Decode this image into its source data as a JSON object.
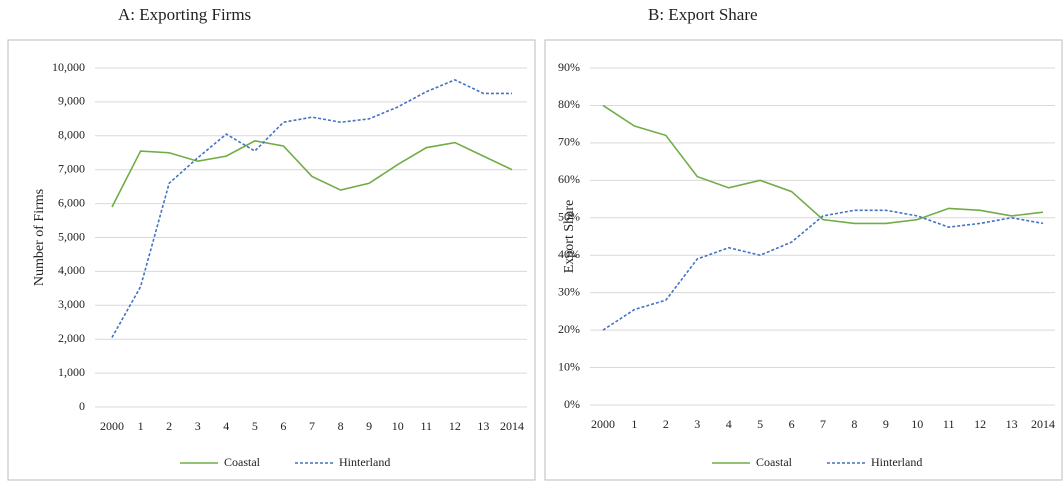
{
  "chart_data": [
    {
      "type": "line",
      "title": "A: Exporting Firms",
      "y_label": "Number of Firms",
      "categories": [
        "2000",
        "1",
        "2",
        "3",
        "4",
        "5",
        "6",
        "7",
        "8",
        "9",
        "10",
        "11",
        "12",
        "13",
        "2014"
      ],
      "series": [
        {
          "name": "Coastal",
          "color": "#70ad47",
          "dash": false,
          "values": [
            5900,
            7550,
            7500,
            7250,
            7400,
            7850,
            7700,
            6800,
            6400,
            6600,
            7150,
            7650,
            7800,
            7400,
            7000
          ]
        },
        {
          "name": "Hinterland",
          "color": "#4472c4",
          "dash": true,
          "values": [
            2050,
            3550,
            6600,
            7350,
            8050,
            7550,
            8400,
            8550,
            8400,
            8500,
            8850,
            9300,
            9650,
            9250,
            9250
          ]
        }
      ],
      "ylim": [
        0,
        10000
      ],
      "yticks": [
        0,
        {
          "value": 1000,
          "label": "1,000"
        },
        {
          "value": 2000,
          "label": "2,000"
        },
        {
          "value": 3000,
          "label": "3,000"
        },
        {
          "value": 4000,
          "label": "4,000"
        },
        {
          "value": 5000,
          "label": "5,000"
        },
        {
          "value": 6000,
          "label": "6,000"
        },
        {
          "value": 7000,
          "label": "7,000"
        },
        {
          "value": 8000,
          "label": "8,000"
        },
        {
          "value": 9000,
          "label": "9,000"
        },
        {
          "value": 10000,
          "label": "10,000"
        }
      ],
      "grid": true,
      "legend": "bottom"
    },
    {
      "type": "line",
      "title": "B: Export Share",
      "y_label": "Export Share",
      "categories": [
        "2000",
        "1",
        "2",
        "3",
        "4",
        "5",
        "6",
        "7",
        "8",
        "9",
        "10",
        "11",
        "12",
        "13",
        "2014"
      ],
      "series": [
        {
          "name": "Coastal",
          "color": "#70ad47",
          "dash": false,
          "values": [
            80,
            74.5,
            72,
            61,
            58,
            60,
            57,
            49.5,
            48.5,
            48.5,
            49.5,
            52.5,
            52,
            50.5,
            51.5
          ]
        },
        {
          "name": "Hinterland",
          "color": "#4472c4",
          "dash": true,
          "values": [
            20,
            25.5,
            28,
            39,
            42,
            40,
            43.5,
            50.5,
            52,
            52,
            50.5,
            47.5,
            48.5,
            50,
            48.5
          ]
        }
      ],
      "ylim": [
        0,
        90
      ],
      "yticks": [
        {
          "value": 0,
          "label": "0%"
        },
        {
          "value": 10,
          "label": "10%"
        },
        {
          "value": 20,
          "label": "20%"
        },
        {
          "value": 30,
          "label": "30%"
        },
        {
          "value": 40,
          "label": "40%"
        },
        {
          "value": 50,
          "label": "50%"
        },
        {
          "value": 60,
          "label": "60%"
        },
        {
          "value": 70,
          "label": "70%"
        },
        {
          "value": 80,
          "label": "80%"
        },
        {
          "value": 90,
          "label": "90%"
        }
      ],
      "grid": true,
      "legend": "bottom"
    }
  ]
}
